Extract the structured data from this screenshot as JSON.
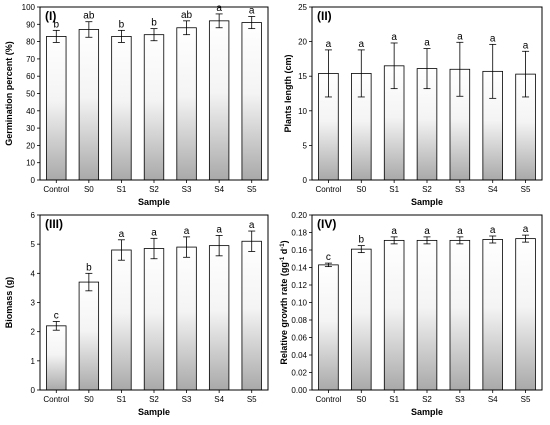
{
  "chart_data": [
    {
      "type": "bar",
      "panel": "(I)",
      "xlabel": "Sample",
      "ylabel": "Germination percent (%)",
      "categories": [
        "Control",
        "S0",
        "S1",
        "S2",
        "S3",
        "S4",
        "S5"
      ],
      "values": [
        83,
        87,
        83,
        84,
        88,
        92,
        91
      ],
      "errors": [
        3.5,
        4.5,
        3.5,
        3.5,
        4,
        4,
        3.5
      ],
      "letters": [
        "b",
        "ab",
        "b",
        "b",
        "ab",
        "a",
        "a"
      ],
      "ylim": [
        0,
        100
      ],
      "yticks": [
        "0",
        "10",
        "20",
        "30",
        "40",
        "50",
        "60",
        "70",
        "80",
        "90",
        "100"
      ]
    },
    {
      "type": "bar",
      "panel": "(II)",
      "xlabel": "Sample",
      "ylabel": "Plants length (cm)",
      "categories": [
        "Control",
        "S0",
        "S1",
        "S2",
        "S3",
        "S4",
        "S5"
      ],
      "values": [
        15.4,
        15.4,
        16.5,
        16.1,
        16.0,
        15.7,
        15.3
      ],
      "errors": [
        3.4,
        3.4,
        3.3,
        2.9,
        3.9,
        3.9,
        3.3
      ],
      "letters": [
        "a",
        "a",
        "a",
        "a",
        "a",
        "a",
        "a"
      ],
      "ylim": [
        0,
        25
      ],
      "yticks": [
        "0",
        "5",
        "10",
        "15",
        "20",
        "25"
      ]
    },
    {
      "type": "bar",
      "panel": "(III)",
      "xlabel": "Sample",
      "ylabel": "Biomass (g)",
      "categories": [
        "Control",
        "S0",
        "S1",
        "S2",
        "S3",
        "S4",
        "S5"
      ],
      "values": [
        2.2,
        3.7,
        4.8,
        4.85,
        4.9,
        4.95,
        5.1
      ],
      "errors": [
        0.15,
        0.3,
        0.35,
        0.35,
        0.35,
        0.35,
        0.35
      ],
      "letters": [
        "c",
        "b",
        "a",
        "a",
        "a",
        "a",
        "a"
      ],
      "ylim": [
        0,
        6
      ],
      "yticks": [
        "0",
        "1",
        "2",
        "3",
        "4",
        "5",
        "6"
      ]
    },
    {
      "type": "bar",
      "panel": "(IV)",
      "xlabel": "Sample",
      "ylabel_main": "Relative growth rate (gg",
      "ylabel_sup1": "-1",
      "ylabel_mid": " d",
      "ylabel_sup2": "-1",
      "ylabel_end": ")",
      "categories": [
        "Control",
        "S0",
        "S1",
        "S2",
        "S3",
        "S4",
        "S5"
      ],
      "values": [
        0.143,
        0.161,
        0.171,
        0.171,
        0.171,
        0.172,
        0.173
      ],
      "errors": [
        0.002,
        0.004,
        0.004,
        0.004,
        0.004,
        0.004,
        0.004
      ],
      "letters": [
        "c",
        "b",
        "a",
        "a",
        "a",
        "a",
        "a"
      ],
      "ylim": [
        0,
        0.2
      ],
      "yticks": [
        "0.00",
        "0.02",
        "0.04",
        "0.06",
        "0.08",
        "0.10",
        "0.12",
        "0.14",
        "0.16",
        "0.18",
        "0.20"
      ]
    }
  ]
}
